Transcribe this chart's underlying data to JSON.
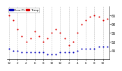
{
  "bg_color": "#ffffff",
  "plot_bg": "#ffffff",
  "temp_color": "#dd0000",
  "dew_color": "#0000bb",
  "black_color": "#000000",
  "hours": [
    0,
    1,
    2,
    3,
    4,
    5,
    6,
    7,
    8,
    9,
    10,
    11,
    12,
    13,
    14,
    15,
    16,
    17,
    18,
    19,
    20,
    21,
    22,
    23
  ],
  "temp_values": [
    65,
    62,
    57,
    53,
    50,
    52,
    56,
    53,
    50,
    52,
    55,
    57,
    55,
    52,
    48,
    50,
    55,
    60,
    62,
    64,
    65,
    64,
    62,
    63
  ],
  "dew_values": [
    46,
    45,
    45,
    44,
    44,
    44,
    44,
    44,
    44,
    43,
    43,
    43,
    44,
    44,
    44,
    44,
    45,
    46,
    46,
    46,
    46,
    47,
    47,
    47
  ],
  "ylim": [
    40,
    70
  ],
  "yticks": [
    45,
    50,
    55,
    60,
    65
  ],
  "ytick_labels": [
    "45",
    "50",
    "55",
    "60",
    "65"
  ],
  "xticks": [
    0,
    2,
    4,
    6,
    8,
    10,
    12,
    14,
    16,
    18,
    20,
    22
  ],
  "xtick_labels": [
    "12",
    "2",
    "4",
    "6",
    "8",
    "10",
    "12",
    "2",
    "4",
    "6",
    "8",
    "10"
  ],
  "grid_color": "#bbbbbb",
  "marker_size": 1.5,
  "ylabel_fontsize": 3.5,
  "tick_fontsize": 3.0,
  "legend_fontsize": 3.2,
  "legend_temp_label": "Temp",
  "legend_dew_label": "Dew Pt"
}
